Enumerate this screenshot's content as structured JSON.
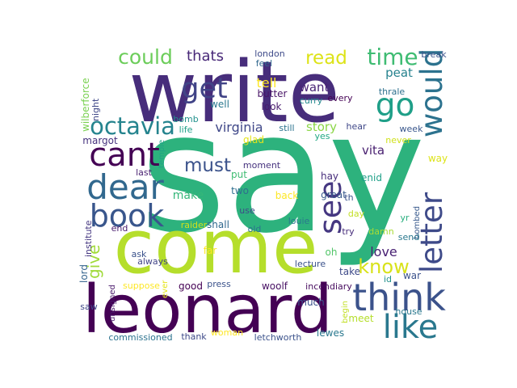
{
  "word_cloud": {
    "words": [
      {
        "text": "say",
        "color": "#2db27d",
        "rot": 0
      },
      {
        "text": "write",
        "color": "#472d7b",
        "rot": 0
      },
      {
        "text": "come",
        "color": "#b5de2b",
        "rot": 0
      },
      {
        "text": "leonard",
        "color": "#440154",
        "rot": 0
      },
      {
        "text": "think",
        "color": "#3b528b",
        "rot": 0
      },
      {
        "text": "letter",
        "color": "#3e4a89",
        "rot": 90
      },
      {
        "text": "would",
        "color": "#2c728e",
        "rot": 90
      },
      {
        "text": "like",
        "color": "#2a788e",
        "rot": 0
      },
      {
        "text": "dear",
        "color": "#31688e",
        "rot": 0
      },
      {
        "text": "cant",
        "color": "#440154",
        "rot": 0
      },
      {
        "text": "book",
        "color": "#39568c",
        "rot": 0
      },
      {
        "text": "see",
        "color": "#453781",
        "rot": 90
      },
      {
        "text": "get",
        "color": "#414487",
        "rot": 0
      },
      {
        "text": "go",
        "color": "#1f9f88",
        "rot": 0
      },
      {
        "text": "octavia",
        "color": "#25848e",
        "rot": 0
      },
      {
        "text": "time",
        "color": "#3fbc73",
        "rot": 0
      },
      {
        "text": "could",
        "color": "#6ccd5a",
        "rot": 0
      },
      {
        "text": "read",
        "color": "#dde318",
        "rot": 0
      },
      {
        "text": "know",
        "color": "#d8e219",
        "rot": 0
      },
      {
        "text": "must",
        "color": "#3b528b",
        "rot": 0
      },
      {
        "text": "give",
        "color": "#a0da39",
        "rot": 90
      },
      {
        "text": "virginia",
        "color": "#3f4788",
        "rot": 0
      },
      {
        "text": "thats",
        "color": "#482878",
        "rot": 0
      },
      {
        "text": "want",
        "color": "#482475",
        "rot": 0
      },
      {
        "text": "story",
        "color": "#8bd646",
        "rot": 0
      },
      {
        "text": "tell",
        "color": "#fde725",
        "rot": 0
      },
      {
        "text": "peat",
        "color": "#26828e",
        "rot": 0
      },
      {
        "text": "vita",
        "color": "#481f70",
        "rot": 0
      },
      {
        "text": "love",
        "color": "#482173",
        "rot": 0
      },
      {
        "text": "make",
        "color": "#35b779",
        "rot": 0
      },
      {
        "text": "wilberforce",
        "color": "#7ad151",
        "rot": 90
      },
      {
        "text": "lord",
        "color": "#33638d",
        "rot": 90
      },
      {
        "text": "night",
        "color": "#3f4788",
        "rot": 90
      },
      {
        "text": "margot",
        "color": "#46327e",
        "rot": 0
      },
      {
        "text": "institute",
        "color": "#453781",
        "rot": 90
      },
      {
        "text": "london",
        "color": "#3e4a89",
        "rot": 0
      },
      {
        "text": "feel",
        "color": "#31688e",
        "rot": 0
      },
      {
        "text": "butter",
        "color": "#481467",
        "rot": 0
      },
      {
        "text": "well",
        "color": "#2a788e",
        "rot": 0
      },
      {
        "text": "look",
        "color": "#481b6d",
        "rot": 0
      },
      {
        "text": "bomb",
        "color": "#21918c",
        "rot": 0
      },
      {
        "text": "life",
        "color": "#1f9f88",
        "rot": 0
      },
      {
        "text": "glad",
        "color": "#e5e419",
        "rot": 0
      },
      {
        "text": "still",
        "color": "#2c728e",
        "rot": 0
      },
      {
        "text": "curry",
        "color": "#23898e",
        "rot": 0
      },
      {
        "text": "every",
        "color": "#440154",
        "rot": 0
      },
      {
        "text": "thrale",
        "color": "#2d708e",
        "rot": 0
      },
      {
        "text": "break",
        "color": "#3b528b",
        "rot": 0
      },
      {
        "text": "week",
        "color": "#39568c",
        "rot": 0
      },
      {
        "text": "hear",
        "color": "#3f4788",
        "rot": 0
      },
      {
        "text": "yes",
        "color": "#22a884",
        "rot": 0
      },
      {
        "text": "never",
        "color": "#d0e11c",
        "rot": 0
      },
      {
        "text": "way",
        "color": "#dde318",
        "rot": 0
      },
      {
        "text": "bombed",
        "color": "#38598c",
        "rot": 90
      },
      {
        "text": "temple",
        "color": "#20a386",
        "rot": 90
      },
      {
        "text": "last",
        "color": "#481f70",
        "rot": 0
      },
      {
        "text": "moment",
        "color": "#46327e",
        "rot": 0
      },
      {
        "text": "hay",
        "color": "#472d7b",
        "rot": 0
      },
      {
        "text": "enid",
        "color": "#1fa088",
        "rot": 0
      },
      {
        "text": "great",
        "color": "#38598c",
        "rot": 0
      },
      {
        "text": "th",
        "color": "#3b528b",
        "rot": 0
      },
      {
        "text": "put",
        "color": "#3fbc73",
        "rot": 0
      },
      {
        "text": "two",
        "color": "#2e6e8e",
        "rot": 0
      },
      {
        "text": "back",
        "color": "#fde725",
        "rot": 0
      },
      {
        "text": "day",
        "color": "#c2df23",
        "rot": 0
      },
      {
        "text": "yr",
        "color": "#29af7f",
        "rot": 0
      },
      {
        "text": "end",
        "color": "#481b6d",
        "rot": 0
      },
      {
        "text": "raider",
        "color": "#d0e11c",
        "rot": 0
      },
      {
        "text": "shall",
        "color": "#31688e",
        "rot": 0
      },
      {
        "text": "use",
        "color": "#3e4a89",
        "rot": 0
      },
      {
        "text": "old",
        "color": "#2c728e",
        "rot": 0
      },
      {
        "text": "louie",
        "color": "#2a788e",
        "rot": 0
      },
      {
        "text": "try",
        "color": "#472d7b",
        "rot": 0
      },
      {
        "text": "damn",
        "color": "#a8db34",
        "rot": 0
      },
      {
        "text": "send",
        "color": "#2a788e",
        "rot": 0
      },
      {
        "text": "ask",
        "color": "#3b528b",
        "rot": 0
      },
      {
        "text": "far",
        "color": "#fde725",
        "rot": 0
      },
      {
        "text": "oh",
        "color": "#52c569",
        "rot": 0
      },
      {
        "text": "always",
        "color": "#414487",
        "rot": 0
      },
      {
        "text": "lecture",
        "color": "#3b528b",
        "rot": 0
      },
      {
        "text": "take",
        "color": "#3e4a89",
        "rot": 0
      },
      {
        "text": "id",
        "color": "#21918c",
        "rot": 0
      },
      {
        "text": "war",
        "color": "#3b528b",
        "rot": 0
      },
      {
        "text": "suppose",
        "color": "#fde725",
        "rot": 0
      },
      {
        "text": "ever",
        "color": "#e5e419",
        "rot": 90
      },
      {
        "text": "good",
        "color": "#440154",
        "rot": 0
      },
      {
        "text": "press",
        "color": "#3b528b",
        "rot": 0
      },
      {
        "text": "woolf",
        "color": "#471063",
        "rot": 0
      },
      {
        "text": "incendiary",
        "color": "#460b5e",
        "rot": 0
      },
      {
        "text": "unsigned",
        "color": "#48186a",
        "rot": 90
      },
      {
        "text": "saw",
        "color": "#3f4788",
        "rot": 0
      },
      {
        "text": "much",
        "color": "#3b528b",
        "rot": 0
      },
      {
        "text": "begin",
        "color": "#c2df23",
        "rot": 90
      },
      {
        "text": "house",
        "color": "#2a788e",
        "rot": 0
      },
      {
        "text": "meet",
        "color": "#b5de2b",
        "rot": 0
      },
      {
        "text": "commissioned",
        "color": "#2c728e",
        "rot": 0
      },
      {
        "text": "thank",
        "color": "#3e4a89",
        "rot": 0
      },
      {
        "text": "woman",
        "color": "#fde725",
        "rot": 0
      },
      {
        "text": "letchworth",
        "color": "#3b528b",
        "rot": 0
      },
      {
        "text": "lewes",
        "color": "#2a788e",
        "rot": 0
      }
    ]
  }
}
